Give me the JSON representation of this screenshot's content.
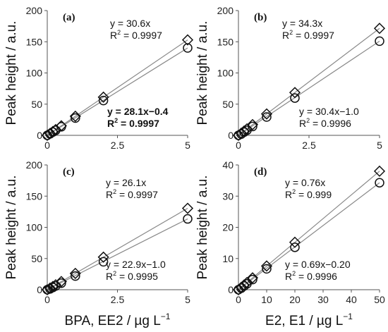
{
  "chart_data": [
    {
      "type": "scatter",
      "panel_label": "(a)",
      "ylabel": "Peak height / a.u.",
      "xlabel": "",
      "xlim": [
        0,
        5
      ],
      "ylim": [
        0,
        200
      ],
      "xticks": [
        "0",
        "2.5",
        "5"
      ],
      "yticks": [
        "0",
        "50",
        "100",
        "150",
        "200"
      ],
      "series": [
        {
          "marker": "diamond",
          "x": [
            0,
            0.1,
            0.2,
            0.3,
            0.5,
            1,
            2,
            5
          ],
          "y": [
            0,
            3.1,
            6.1,
            9.2,
            15.3,
            30.6,
            61.2,
            153
          ],
          "fit_slope": 30.6,
          "fit_intercept": 0
        },
        {
          "marker": "circle",
          "x": [
            0,
            0.1,
            0.2,
            0.3,
            0.5,
            1,
            2,
            5
          ],
          "y": [
            0,
            2.4,
            5.2,
            8.0,
            13.7,
            27.7,
            55.8,
            140.1
          ],
          "fit_slope": 28.1,
          "fit_intercept": -0.4
        }
      ],
      "annotations": [
        {
          "eq": "y = 30.6x",
          "r2_value": "= 0.9997",
          "bold": false
        },
        {
          "eq": "y = 28.1x−0.4",
          "r2_value": "= 0.9997",
          "bold": true
        }
      ]
    },
    {
      "type": "scatter",
      "panel_label": "(b)",
      "ylabel": "Peak height / a.u.",
      "xlabel": "",
      "xlim": [
        0,
        5
      ],
      "ylim": [
        0,
        200
      ],
      "xticks": [
        "0",
        "2.5",
        "5"
      ],
      "yticks": [
        "0",
        "50",
        "100",
        "150",
        "200"
      ],
      "series": [
        {
          "marker": "diamond",
          "x": [
            0,
            0.1,
            0.2,
            0.3,
            0.5,
            1,
            2,
            5
          ],
          "y": [
            0,
            3.4,
            6.9,
            10.3,
            17.2,
            34.3,
            68.6,
            171.5
          ],
          "fit_slope": 34.3,
          "fit_intercept": 0
        },
        {
          "marker": "circle",
          "x": [
            0,
            0.1,
            0.2,
            0.3,
            0.5,
            1,
            2,
            5
          ],
          "y": [
            0,
            2.0,
            5.1,
            8.1,
            14.2,
            29.4,
            59.8,
            151
          ],
          "fit_slope": 30.4,
          "fit_intercept": -1.0
        }
      ],
      "annotations": [
        {
          "eq": "y = 34.3x",
          "r2_value": "= 0.9997",
          "bold": false
        },
        {
          "eq": "y = 30.4x−1.0",
          "r2_value": "= 0.9996",
          "bold": false
        }
      ]
    },
    {
      "type": "scatter",
      "panel_label": "(c)",
      "ylabel": "Peak height / a.u.",
      "xlabel": "BPA, EE2 / µg L",
      "xlabel_sup": "−1",
      "xlim": [
        0,
        5
      ],
      "ylim": [
        0,
        200
      ],
      "xticks": [
        "0",
        "2.5",
        "5"
      ],
      "yticks": [
        "0",
        "50",
        "100",
        "150",
        "200"
      ],
      "series": [
        {
          "marker": "diamond",
          "x": [
            0,
            0.1,
            0.2,
            0.3,
            0.5,
            1,
            2,
            5
          ],
          "y": [
            0,
            2.6,
            5.2,
            7.8,
            13.1,
            26.1,
            52.2,
            130.5
          ],
          "fit_slope": 26.1,
          "fit_intercept": 0
        },
        {
          "marker": "circle",
          "x": [
            0,
            0.1,
            0.2,
            0.3,
            0.5,
            1,
            2,
            5
          ],
          "y": [
            0,
            1.3,
            3.6,
            5.9,
            10.5,
            21.9,
            44.8,
            113.5
          ],
          "fit_slope": 22.9,
          "fit_intercept": -1.0
        }
      ],
      "annotations": [
        {
          "eq": "y = 26.1x",
          "r2_value": "= 0.9997",
          "bold": false
        },
        {
          "eq": "y = 22.9x−1.0",
          "r2_value": "= 0.9995",
          "bold": false
        }
      ]
    },
    {
      "type": "scatter",
      "panel_label": "(d)",
      "ylabel": "Peak height / a.u.",
      "xlabel": "E2, E1 / µg L",
      "xlabel_sup": "−1",
      "xlim": [
        0,
        50
      ],
      "ylim": [
        0,
        40
      ],
      "xticks": [
        "0",
        "10",
        "20",
        "30",
        "40",
        "50"
      ],
      "yticks": [
        "0",
        "10",
        "20",
        "30",
        "40"
      ],
      "series": [
        {
          "marker": "diamond",
          "x": [
            0,
            1,
            2,
            3,
            5,
            10,
            20,
            50
          ],
          "y": [
            0,
            0.76,
            1.52,
            2.28,
            3.8,
            7.6,
            15.2,
            38
          ],
          "fit_slope": 0.76,
          "fit_intercept": 0
        },
        {
          "marker": "circle",
          "x": [
            0,
            1,
            2,
            3,
            5,
            10,
            20,
            50
          ],
          "y": [
            0,
            0.49,
            1.18,
            1.87,
            3.25,
            6.7,
            13.6,
            34.3
          ],
          "fit_slope": 0.69,
          "fit_intercept": -0.2
        }
      ],
      "annotations": [
        {
          "eq": "y = 0.76x",
          "r2_value": "= 0.999",
          "bold": false
        },
        {
          "eq": "y = 0.69x−0.20",
          "r2_value": "= 0.9996",
          "bold": false
        }
      ]
    }
  ]
}
